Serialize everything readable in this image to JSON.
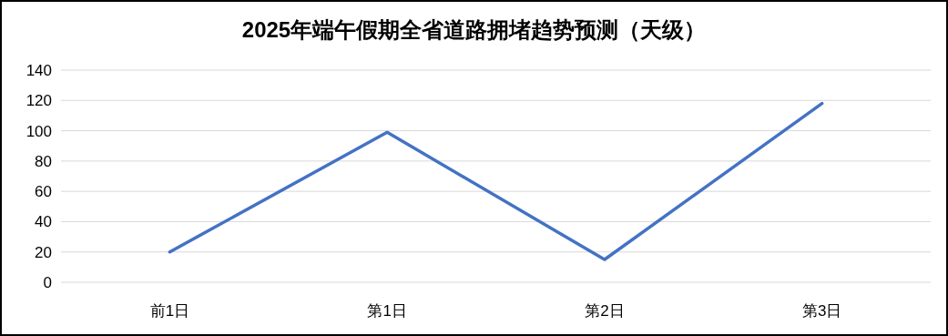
{
  "chart_data": {
    "type": "line",
    "title": "2025年端午假期全省道路拥堵趋势预测（天级）",
    "categories": [
      "前1日",
      "第1日",
      "第2日",
      "第3日"
    ],
    "series": [
      {
        "color": "#4472c4",
        "values": [
          20,
          99,
          15,
          118
        ]
      }
    ],
    "ylim": [
      0,
      140
    ],
    "yticks": [
      0,
      20,
      40,
      60,
      80,
      100,
      120,
      140
    ],
    "grid": "y"
  }
}
